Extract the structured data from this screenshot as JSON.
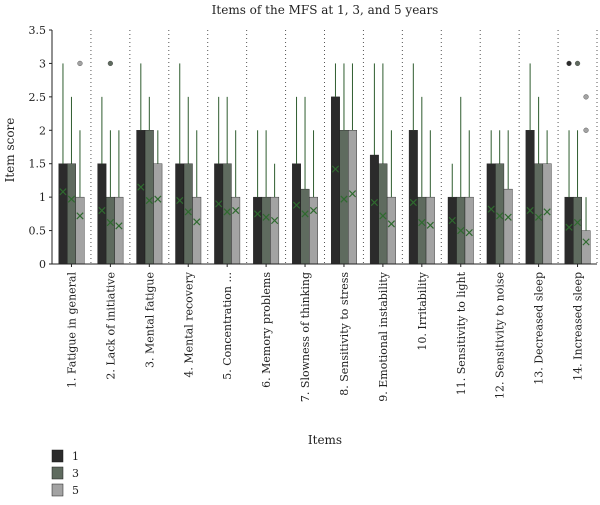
{
  "chart_data": {
    "type": "bar",
    "title": "Items of the MFS at 1, 3, and 5 years",
    "xlabel": "Items",
    "ylabel": "Item score",
    "ylim": [
      0,
      3.5
    ],
    "yticks": [
      "0",
      "0.5",
      "1",
      "1.5",
      "2",
      "2.5",
      "3",
      "3.5"
    ],
    "grid": "vertical dotted",
    "legend_position": "bottom-left",
    "categories": [
      "1. Fatigue in general",
      "2. Lack of initiative",
      "3. Mental fatigue",
      "4. Mental recovery",
      "5. Concentration ...",
      "6. Memory problems",
      "7. Slowness of thinking",
      "8. Sensitivity to stress",
      "9. Emotional instability",
      "10. Irritability",
      "11. Sensitivity to light",
      "12. Sensitivity to noise",
      "13. Decreased sleep",
      "14. Increased sleep"
    ],
    "series": [
      {
        "name": "1",
        "color": "#2b2b2b",
        "values": [
          1.5,
          1.5,
          2,
          1.5,
          1.5,
          1,
          1.5,
          2.5,
          1.63,
          2,
          1,
          1.5,
          2,
          1
        ],
        "means": [
          1.08,
          0.8,
          1.15,
          0.95,
          0.9,
          0.75,
          0.88,
          1.42,
          0.92,
          0.92,
          0.65,
          0.82,
          0.8,
          0.55
        ],
        "whisker_max": [
          3,
          2.5,
          3,
          3,
          2.5,
          2,
          2.5,
          3,
          3,
          3,
          1.5,
          2,
          3,
          2
        ],
        "outliers": [
          [],
          [],
          [],
          [],
          [],
          [],
          [],
          [],
          [],
          [],
          [],
          [],
          [],
          [
            3
          ]
        ]
      },
      {
        "name": "3",
        "color": "#5f6b5f",
        "values": [
          1.5,
          1,
          2,
          1.5,
          1.5,
          1,
          1.12,
          2,
          1.5,
          1,
          1,
          1.5,
          1.5,
          1
        ],
        "means": [
          0.97,
          0.62,
          0.95,
          0.78,
          0.78,
          0.7,
          0.75,
          0.97,
          0.72,
          0.62,
          0.5,
          0.72,
          0.7,
          0.62
        ],
        "whisker_max": [
          2.5,
          2,
          2.5,
          2.5,
          2.5,
          2,
          2.5,
          3,
          3,
          2.5,
          2.5,
          2,
          2.5,
          2
        ],
        "outliers": [
          [],
          [
            3
          ],
          [],
          [],
          [],
          [],
          [],
          [],
          [],
          [],
          [],
          [],
          [],
          [
            3
          ]
        ]
      },
      {
        "name": "5",
        "color": "#a3a3a3",
        "values": [
          1,
          1,
          1.5,
          1,
          1,
          1,
          1,
          2,
          1,
          1,
          1,
          1.12,
          1.5,
          0.5
        ],
        "means": [
          0.72,
          0.57,
          0.97,
          0.63,
          0.8,
          0.65,
          0.8,
          1.05,
          0.6,
          0.58,
          0.47,
          0.7,
          0.78,
          0.33
        ],
        "whisker_max": [
          2,
          2,
          2,
          2,
          2,
          1.5,
          2,
          3,
          2,
          2,
          2,
          2,
          2,
          1
        ],
        "outliers": [
          [
            3
          ],
          [],
          [],
          [],
          [],
          [],
          [],
          [],
          [],
          [],
          [],
          [],
          [],
          [
            2.5,
            2
          ]
        ]
      }
    ]
  }
}
